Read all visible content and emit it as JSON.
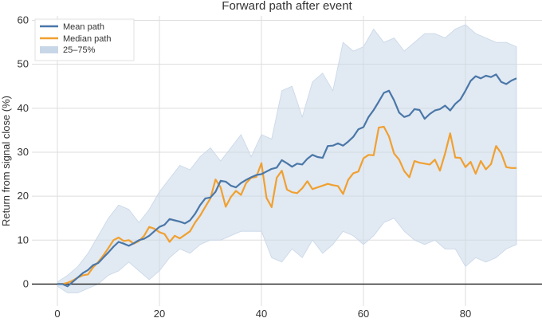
{
  "chart_data": {
    "type": "line",
    "title": "Forward path after event",
    "xlabel": "",
    "ylabel": "Return from signal close (%)",
    "xlim": [
      -5,
      95
    ],
    "ylim": [
      -5,
      61
    ],
    "xticks": [
      0,
      20,
      40,
      60,
      80
    ],
    "yticks": [
      0,
      10,
      20,
      30,
      40,
      50,
      60
    ],
    "grid": true,
    "legend_position": "top-left",
    "zero_line": 0,
    "colors": {
      "mean": "#4a77a8",
      "median": "#f0a030",
      "band": "#c8d7e8",
      "zero": "#222222",
      "grid": "#dddddd",
      "plot_bg": "#ffffff"
    },
    "series": [
      {
        "name": "Mean path",
        "x": [
          0,
          1,
          2,
          3,
          4,
          5,
          6,
          7,
          8,
          9,
          10,
          11,
          12,
          13,
          14,
          15,
          16,
          17,
          18,
          19,
          20,
          21,
          22,
          23,
          24,
          25,
          26,
          27,
          28,
          29,
          30,
          31,
          32,
          33,
          34,
          35,
          36,
          37,
          38,
          39,
          40,
          41,
          42,
          43,
          44,
          45,
          46,
          47,
          48,
          49,
          50,
          51,
          52,
          53,
          54,
          55,
          56,
          57,
          58,
          59,
          60,
          61,
          62,
          63,
          64,
          65,
          66,
          67,
          68,
          69,
          70,
          71,
          72,
          73,
          74,
          75,
          76,
          77,
          78,
          79,
          80,
          81,
          82,
          83,
          84,
          85,
          86,
          87,
          88,
          89,
          90
        ],
        "y": [
          0,
          0,
          -0.5,
          0.5,
          1.5,
          2.5,
          3.2,
          4.3,
          4.8,
          6,
          7.2,
          8.5,
          9.6,
          9.2,
          8.7,
          9.3,
          10,
          10.3,
          11,
          12,
          13,
          13.5,
          14.8,
          14.5,
          14.2,
          13.8,
          14.5,
          16,
          18,
          19.5,
          19.7,
          21,
          23.5,
          23.3,
          22.4,
          22,
          23,
          23.7,
          24.3,
          24.8,
          25,
          25.6,
          26.2,
          26.5,
          28.2,
          27.5,
          26.7,
          27.4,
          27.2,
          28.5,
          29.4,
          28.9,
          28.7,
          31.4,
          31.5,
          32,
          31.5,
          32.4,
          33.5,
          35.2,
          35.7,
          38,
          39.6,
          41.5,
          43.5,
          44,
          41.8,
          39,
          38,
          38.4,
          39.8,
          39.6,
          37.6,
          38.7,
          39.5,
          39.8,
          40.6,
          39.5,
          41,
          42,
          44,
          46.2,
          47.3,
          46.8,
          47.4,
          47.1,
          47.7,
          46,
          45.5,
          46.3,
          46.8
        ]
      },
      {
        "name": "Median path",
        "x": [
          0,
          1,
          2,
          3,
          4,
          5,
          6,
          7,
          8,
          9,
          10,
          11,
          12,
          13,
          14,
          15,
          16,
          17,
          18,
          19,
          20,
          21,
          22,
          23,
          24,
          25,
          26,
          27,
          28,
          29,
          30,
          31,
          32,
          33,
          34,
          35,
          36,
          37,
          38,
          39,
          40,
          41,
          42,
          43,
          44,
          45,
          46,
          47,
          48,
          49,
          50,
          51,
          52,
          53,
          54,
          55,
          56,
          57,
          58,
          59,
          60,
          61,
          62,
          63,
          64,
          65,
          66,
          67,
          68,
          69,
          70,
          71,
          72,
          73,
          74,
          75,
          76,
          77,
          78,
          79,
          80,
          81,
          82,
          83,
          84,
          85,
          86,
          87,
          88,
          89,
          90
        ],
        "y": [
          0,
          0,
          0.3,
          0.8,
          1.5,
          2,
          2.2,
          3.8,
          5,
          6.5,
          8.2,
          10,
          10.6,
          9.8,
          10,
          9.2,
          9.8,
          11,
          13,
          12.6,
          11.8,
          11.4,
          9.6,
          11,
          10.4,
          11.2,
          12,
          14,
          15.6,
          17.6,
          19.5,
          23.8,
          22,
          17.6,
          19.8,
          21.2,
          20.3,
          23,
          24.2,
          24.4,
          27.5,
          19.6,
          17.5,
          24.2,
          25.8,
          21.5,
          20.9,
          20.7,
          21.8,
          23.4,
          21.6,
          22,
          22.4,
          22.8,
          22.5,
          22.3,
          20.5,
          23.7,
          25.2,
          25.6,
          28.6,
          29.4,
          29.3,
          35.6,
          35.8,
          33.6,
          29.7,
          28.3,
          25.7,
          24.3,
          28,
          27.6,
          27.4,
          27.2,
          28.3,
          25.8,
          29.7,
          34.3,
          28.8,
          28.7,
          26.6,
          27.8,
          25.1,
          28,
          26.1,
          27.3,
          31.4,
          29.8,
          26.6,
          26.4,
          26.4
        ]
      }
    ],
    "band": {
      "name": "25–75%",
      "x": [
        0,
        2,
        4,
        6,
        8,
        10,
        12,
        14,
        16,
        18,
        20,
        22,
        24,
        26,
        28,
        30,
        32,
        34,
        36,
        38,
        40,
        42,
        44,
        46,
        48,
        50,
        52,
        54,
        56,
        58,
        60,
        62,
        64,
        66,
        68,
        70,
        72,
        74,
        76,
        78,
        80,
        82,
        84,
        86,
        88,
        90
      ],
      "upper": [
        0.5,
        2,
        4,
        7,
        11,
        15,
        18,
        17,
        14,
        17,
        21,
        24,
        27,
        26,
        29,
        31,
        28,
        31,
        34,
        29,
        34,
        33,
        44,
        45,
        38,
        46,
        48,
        44,
        55,
        53,
        54,
        58,
        55,
        56,
        53,
        55,
        57,
        57,
        56,
        58,
        59,
        57,
        56,
        55,
        55,
        54
      ],
      "lower": [
        -0.5,
        -2,
        -2,
        -1,
        0,
        2,
        3,
        5,
        3,
        1,
        3,
        6,
        8,
        7,
        9,
        10,
        10,
        11,
        12,
        12,
        12,
        6,
        5,
        8,
        6,
        10,
        7,
        9,
        12,
        11,
        9,
        11,
        14,
        15,
        12,
        10,
        9,
        10,
        8,
        8,
        4,
        6,
        5,
        6,
        8,
        9
      ]
    }
  }
}
